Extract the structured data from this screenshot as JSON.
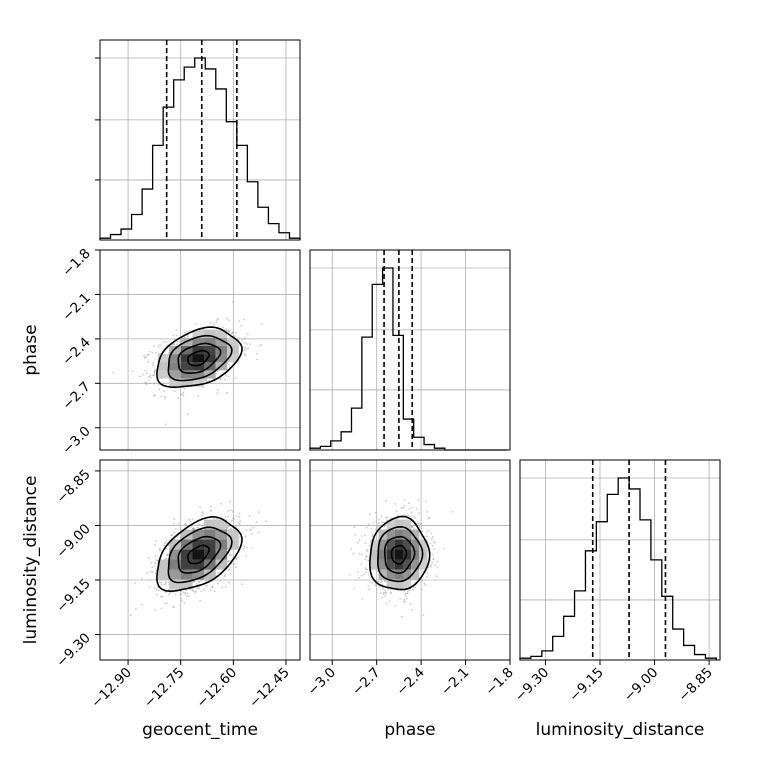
{
  "chart_data": {
    "type": "corner",
    "parameters": [
      "geocent_time",
      "phase",
      "luminosity_distance"
    ],
    "grid": true,
    "colors": {
      "line": "#000000",
      "grid": "#b0b0b0",
      "scatter": "#9e9e9e"
    },
    "axes": {
      "geocent_time": {
        "label": "geocent_time",
        "range": [
          -12.98,
          -12.41
        ],
        "ticks": [
          -12.9,
          -12.75,
          -12.6,
          -12.45
        ],
        "tick_labels": [
          "−12.90",
          "−12.75",
          "−12.60",
          "−12.45"
        ]
      },
      "phase": {
        "label": "phase",
        "range": [
          -3.15,
          -1.8
        ],
        "ticks": [
          -3.0,
          -2.7,
          -2.4,
          -2.1,
          -1.8
        ],
        "tick_labels": [
          "−3.0",
          "−2.7",
          "−2.4",
          "−2.1",
          "−1.8"
        ]
      },
      "luminosity_distance": {
        "label": "luminosity_distance",
        "range": [
          -9.37,
          -8.82
        ],
        "ticks": [
          -9.3,
          -9.15,
          -9.0,
          -8.85
        ],
        "tick_labels": [
          "−9.30",
          "−9.15",
          "−9.00",
          "−8.85"
        ]
      }
    },
    "marginals": {
      "geocent_time": {
        "bins": [
          -12.98,
          -12.95,
          -12.92,
          -12.89,
          -12.86,
          -12.83,
          -12.8,
          -12.77,
          -12.74,
          -12.71,
          -12.68,
          -12.65,
          -12.62,
          -12.59,
          -12.56,
          -12.53,
          -12.5,
          -12.47,
          -12.44,
          -12.41
        ],
        "counts": [
          1,
          3,
          6,
          14,
          28,
          52,
          73,
          88,
          95,
          100,
          94,
          83,
          65,
          52,
          32,
          18,
          9,
          4,
          1
        ],
        "quantiles": [
          -12.79,
          -12.69,
          -12.59
        ]
      },
      "phase": {
        "bins": [
          -3.15,
          -3.08,
          -3.01,
          -2.94,
          -2.87,
          -2.8,
          -2.73,
          -2.66,
          -2.59,
          -2.52,
          -2.45,
          -2.38,
          -2.31,
          -2.24,
          -2.17,
          -2.1,
          -2.03,
          -1.96,
          -1.89,
          -1.82
        ],
        "counts": [
          1,
          2,
          5,
          10,
          23,
          62,
          91,
          100,
          63,
          17,
          7,
          3,
          1,
          0,
          0,
          0,
          0,
          0,
          0
        ],
        "quantiles": [
          -2.65,
          -2.55,
          -2.46
        ]
      },
      "luminosity_distance": {
        "bins": [
          -9.37,
          -9.34,
          -9.31,
          -9.28,
          -9.25,
          -9.22,
          -9.19,
          -9.16,
          -9.13,
          -9.1,
          -9.07,
          -9.04,
          -9.01,
          -8.98,
          -8.95,
          -8.92,
          -8.89,
          -8.86,
          -8.83
        ],
        "counts": [
          1,
          2,
          5,
          13,
          24,
          38,
          60,
          76,
          91,
          100,
          94,
          77,
          55,
          35,
          17,
          8,
          3,
          1
        ],
        "quantiles": [
          -9.17,
          -9.07,
          -8.97
        ]
      }
    },
    "joint": [
      {
        "x": "geocent_time",
        "y": "phase",
        "mean": [
          -12.7,
          -2.53
        ],
        "sd": [
          0.06,
          0.1
        ],
        "rho": 0.35
      },
      {
        "x": "geocent_time",
        "y": "luminosity_distance",
        "mean": [
          -12.7,
          -9.08
        ],
        "sd": [
          0.06,
          0.05
        ],
        "rho": 0.45
      },
      {
        "x": "phase",
        "y": "luminosity_distance",
        "mean": [
          -2.55,
          -9.08
        ],
        "sd": [
          0.1,
          0.05
        ],
        "rho": 0.05
      }
    ]
  }
}
